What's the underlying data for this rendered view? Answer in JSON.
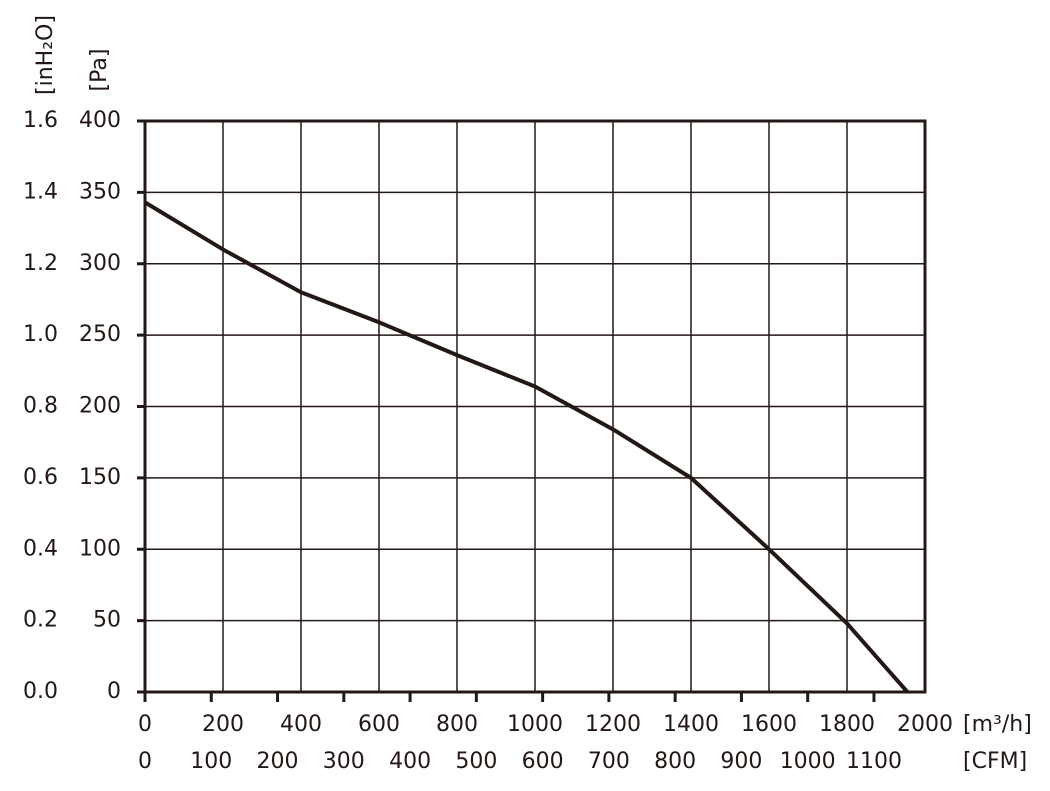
{
  "chart_data": {
    "type": "line",
    "x_label": "[m³/h]",
    "x2_label": "[CFM]",
    "y_label": "[Pa]",
    "y2_label": "[inH₂O]",
    "x": [
      0,
      200,
      400,
      600,
      800,
      1000,
      1200,
      1400,
      1600,
      1800,
      1955
    ],
    "series": [
      {
        "color": "#231815",
        "values": [
          343,
          310,
          280,
          259,
          236,
          214,
          184,
          150,
          100,
          48,
          0
        ]
      }
    ],
    "xlim": [
      0,
      2000
    ],
    "xticks": [
      0,
      200,
      400,
      600,
      800,
      1000,
      1200,
      1400,
      1600,
      1800,
      2000
    ],
    "x2lim": [
      0,
      1177
    ],
    "x2ticks": [
      0,
      100,
      200,
      300,
      400,
      500,
      600,
      700,
      800,
      900,
      1000,
      1100
    ],
    "ylim": [
      0,
      400
    ],
    "yticks": [
      0,
      50,
      100,
      150,
      200,
      250,
      300,
      350,
      400
    ],
    "y2lim": [
      0,
      1.6
    ],
    "y2ticks": [
      {
        "value": 0,
        "label": "0.0"
      },
      0.2,
      0.4,
      0.6,
      0.8,
      {
        "value": 1,
        "label": "1.0"
      },
      1.2,
      1.4,
      1.6
    ],
    "grid": true
  }
}
